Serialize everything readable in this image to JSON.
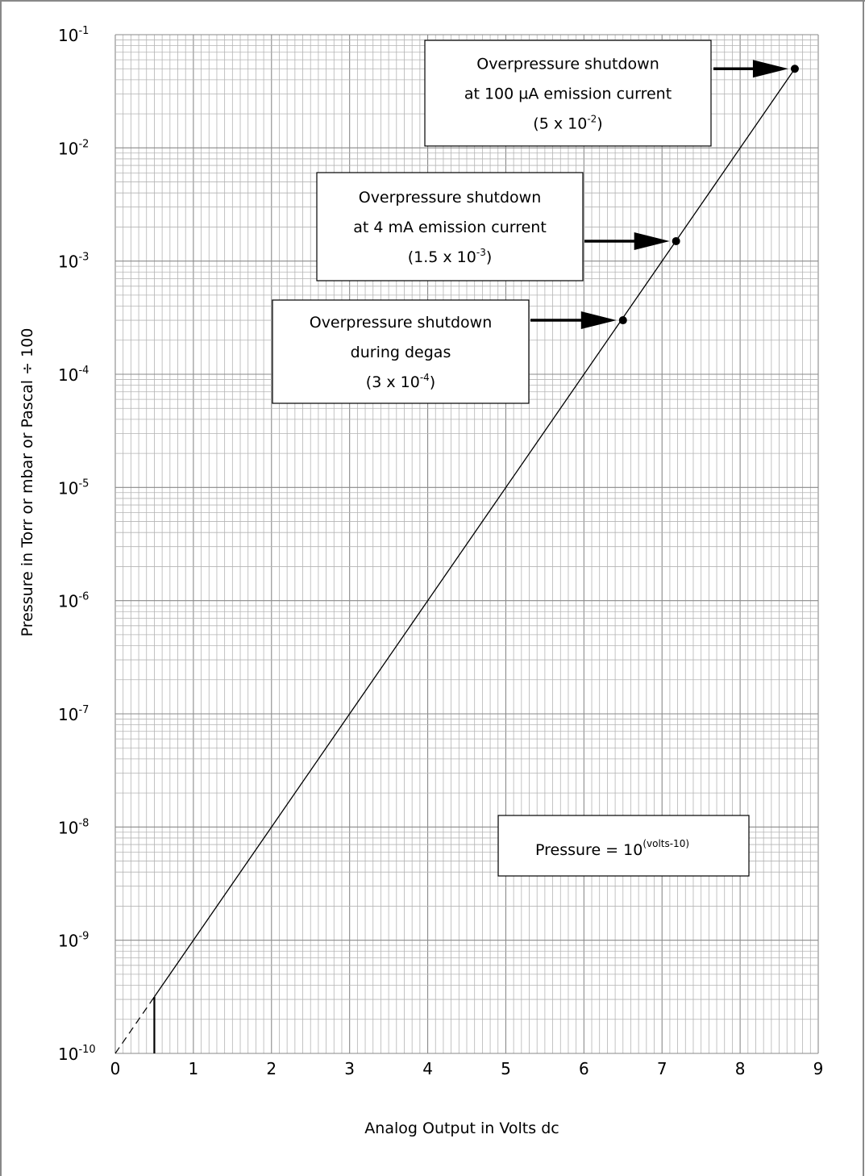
{
  "chart_data": {
    "type": "line",
    "xlabel": "Analog Output in Volts dc",
    "ylabel": "Pressure in Torr or mbar or Pascal ÷ 100",
    "xlim": [
      0,
      9
    ],
    "ylim": [
      1e-10,
      0.1
    ],
    "yscale": "log",
    "x_ticks": [
      "0",
      "1",
      "2",
      "3",
      "4",
      "5",
      "6",
      "7",
      "8",
      "9"
    ],
    "y_ticks": [
      {
        "base": "10",
        "exp": "-10"
      },
      {
        "base": "10",
        "exp": "-9"
      },
      {
        "base": "10",
        "exp": "-8"
      },
      {
        "base": "10",
        "exp": "-7"
      },
      {
        "base": "10",
        "exp": "-6"
      },
      {
        "base": "10",
        "exp": "-5"
      },
      {
        "base": "10",
        "exp": "-4"
      },
      {
        "base": "10",
        "exp": "-3"
      },
      {
        "base": "10",
        "exp": "-2"
      },
      {
        "base": "10",
        "exp": "-1"
      }
    ],
    "grid": true,
    "series": [
      {
        "formula": "pressure = 10^(volts-10)",
        "x": [
          0.5,
          8.7
        ],
        "y": [
          3.16e-10,
          0.05
        ],
        "dashed_extension": {
          "x": [
            0,
            0.5
          ],
          "y": [
            1e-10,
            3.16e-10
          ]
        }
      }
    ],
    "points": [
      {
        "x": 6.5,
        "y": 0.0003
      },
      {
        "x": 7.18,
        "y": 0.0015
      },
      {
        "x": 8.7,
        "y": 0.05
      }
    ],
    "marker_line": {
      "x": 0.5
    },
    "annotations": [
      {
        "lines": [
          "Overpressure shutdown",
          "at 100 µA emission current"
        ],
        "value_prefix": "(5 x 10",
        "value_exp": "-2",
        "value_suffix": ")",
        "target_point": 2
      },
      {
        "lines": [
          "Overpressure shutdown",
          "at 4 mA emission current"
        ],
        "value_prefix": "(1.5 x 10",
        "value_exp": "-3",
        "value_suffix": ")",
        "target_point": 1
      },
      {
        "lines": [
          "Overpressure shutdown",
          "during degas"
        ],
        "value_prefix": "(3 x 10",
        "value_exp": "-4",
        "value_suffix": ")",
        "target_point": 0
      }
    ],
    "formula_label": {
      "prefix": "Pressure = 10",
      "exp": "(volts-10)"
    }
  }
}
